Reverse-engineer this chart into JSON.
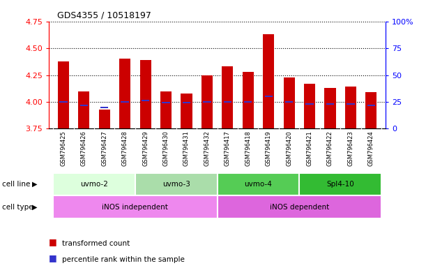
{
  "title": "GDS4355 / 10518197",
  "samples": [
    "GSM796425",
    "GSM796426",
    "GSM796427",
    "GSM796428",
    "GSM796429",
    "GSM796430",
    "GSM796431",
    "GSM796432",
    "GSM796417",
    "GSM796418",
    "GSM796419",
    "GSM796420",
    "GSM796421",
    "GSM796422",
    "GSM796423",
    "GSM796424"
  ],
  "transformed_count": [
    4.38,
    4.1,
    3.93,
    4.4,
    4.39,
    4.1,
    4.08,
    4.25,
    4.33,
    4.28,
    4.63,
    4.23,
    4.17,
    4.13,
    4.14,
    4.09
  ],
  "percentile_rank": [
    25,
    22,
    20,
    25,
    26,
    24,
    24,
    25,
    25,
    25,
    30,
    25,
    23,
    23,
    23,
    22
  ],
  "ylim_left": [
    3.75,
    4.75
  ],
  "ylim_right": [
    0,
    100
  ],
  "yticks_left": [
    3.75,
    4.0,
    4.25,
    4.5,
    4.75
  ],
  "yticks_right": [
    0,
    25,
    50,
    75,
    100
  ],
  "bar_color": "#cc0000",
  "blue_color": "#3333cc",
  "bar_width": 0.55,
  "cell_lines": [
    {
      "label": "uvmo-2",
      "start": 0,
      "end": 3,
      "color": "#ddffdd"
    },
    {
      "label": "uvmo-3",
      "start": 4,
      "end": 7,
      "color": "#aaddaa"
    },
    {
      "label": "uvmo-4",
      "start": 8,
      "end": 11,
      "color": "#55cc55"
    },
    {
      "label": "Spl4-10",
      "start": 12,
      "end": 15,
      "color": "#33bb33"
    }
  ],
  "cell_types": [
    {
      "label": "iNOS independent",
      "start": 0,
      "end": 7,
      "color": "#ee88ee"
    },
    {
      "label": "iNOS dependent",
      "start": 8,
      "end": 15,
      "color": "#dd66dd"
    }
  ],
  "legend_red_label": "transformed count",
  "legend_blue_label": "percentile rank within the sample",
  "cell_line_label": "cell line",
  "cell_type_label": "cell type",
  "grid_color": "black",
  "xtick_bg_color": "#cccccc",
  "fig_width": 6.11,
  "fig_height": 3.84,
  "dpi": 100
}
